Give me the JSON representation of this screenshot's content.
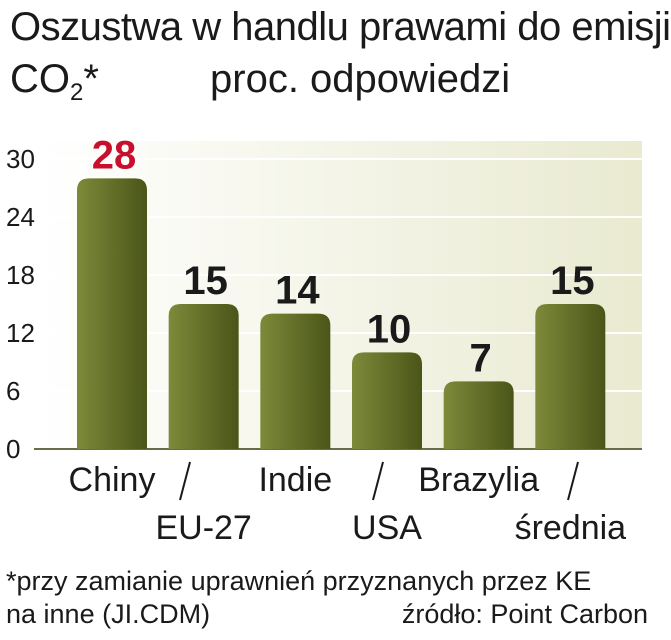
{
  "header": {
    "title": "Oszustwa w handlu prawami do emisji",
    "co2_main": "CO",
    "co2_sub": "2",
    "co2_star": "*",
    "subtitle": "proc. odpowiedzi"
  },
  "footer": {
    "footnote_line1": "*przy zamianie uprawnień przyznanych przez KE",
    "footnote_line2": "na inne (JI.CDM)",
    "source": "źródło: Point Carbon"
  },
  "colors": {
    "bar_dark": "#4a5518",
    "bar_light": "#7d8a3a",
    "highlight": "#c8102e",
    "panel": "#e9ead0",
    "grid": "#ffffff"
  },
  "chart_data": {
    "type": "bar",
    "categories": [
      "Chiny",
      "EU-27",
      "Indie",
      "USA",
      "Brazylia",
      "średnia"
    ],
    "values": [
      28,
      15,
      14,
      10,
      7,
      15
    ],
    "value_labels": [
      "28",
      "15",
      "14",
      "10",
      "7",
      "15"
    ],
    "highlight_index": 0,
    "ylim": [
      0,
      30
    ],
    "yticks": [
      0,
      6,
      12,
      18,
      24,
      30
    ],
    "ytick_labels": [
      "0",
      "6",
      "12",
      "18",
      "24",
      "30"
    ],
    "grid": true,
    "title": "Oszustwa w handlu prawami do emisji CO2*",
    "ylabel": "proc. odpowiedzi"
  }
}
